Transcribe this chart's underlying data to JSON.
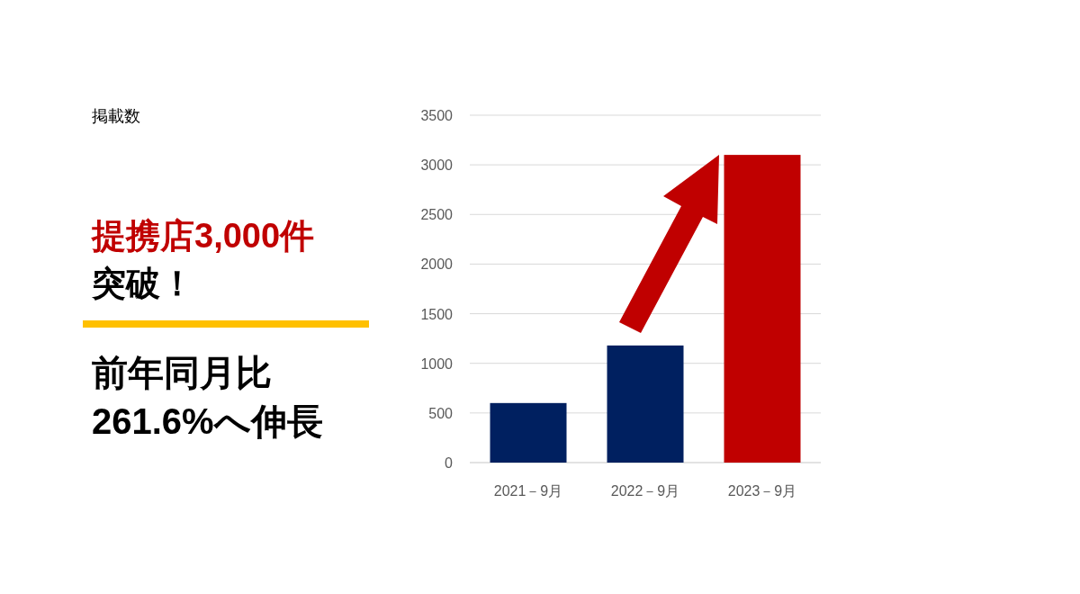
{
  "chart_data": {
    "type": "bar",
    "title": "掲載数",
    "categories": [
      "2021－9月",
      "2022－9月",
      "2023－9月"
    ],
    "values": [
      600,
      1180,
      3100
    ],
    "colors": [
      "#002060",
      "#002060",
      "#c00000"
    ],
    "ylim": [
      0,
      3500
    ],
    "yticks": [
      0,
      500,
      1000,
      1500,
      2000,
      2500,
      3000,
      3500
    ],
    "grid": "y",
    "annotations": [
      "提携店3,000件",
      "突破！",
      "前年同月比",
      "261.6%へ伸長"
    ]
  }
}
